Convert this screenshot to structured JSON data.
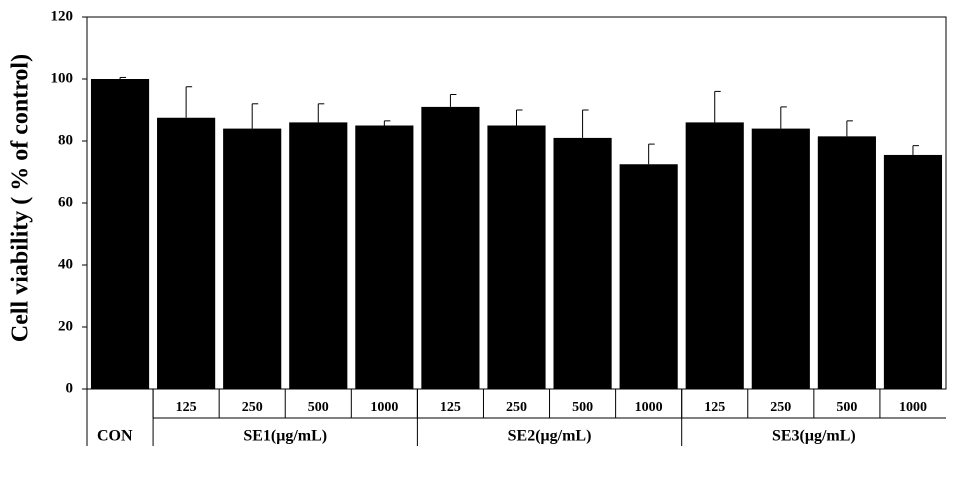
{
  "chart_data": {
    "type": "bar",
    "y_label": "Cell viability ( % of control)",
    "categories": [
      null,
      "125",
      "250",
      "500",
      "1000",
      "125",
      "250",
      "500",
      "1000",
      "125",
      "250",
      "500",
      "1000"
    ],
    "groups": [
      {
        "label": "CON",
        "count": 1
      },
      {
        "label": "SE1(μg/mL)",
        "count": 4
      },
      {
        "label": "SE2(μg/mL)",
        "count": 4
      },
      {
        "label": "SE3(μg/mL)",
        "count": 4
      }
    ],
    "values": [
      100,
      87.5,
      84,
      86,
      85,
      91,
      85,
      81,
      72.5,
      86,
      84,
      81.5,
      75.5
    ],
    "errors": [
      0.5,
      10,
      8,
      6,
      1.5,
      4,
      5,
      9,
      6.5,
      10,
      7,
      5,
      3
    ],
    "color": "#000000",
    "ylim": [
      0,
      120
    ],
    "yticks": [
      0,
      20,
      40,
      60,
      80,
      100,
      120
    ]
  }
}
